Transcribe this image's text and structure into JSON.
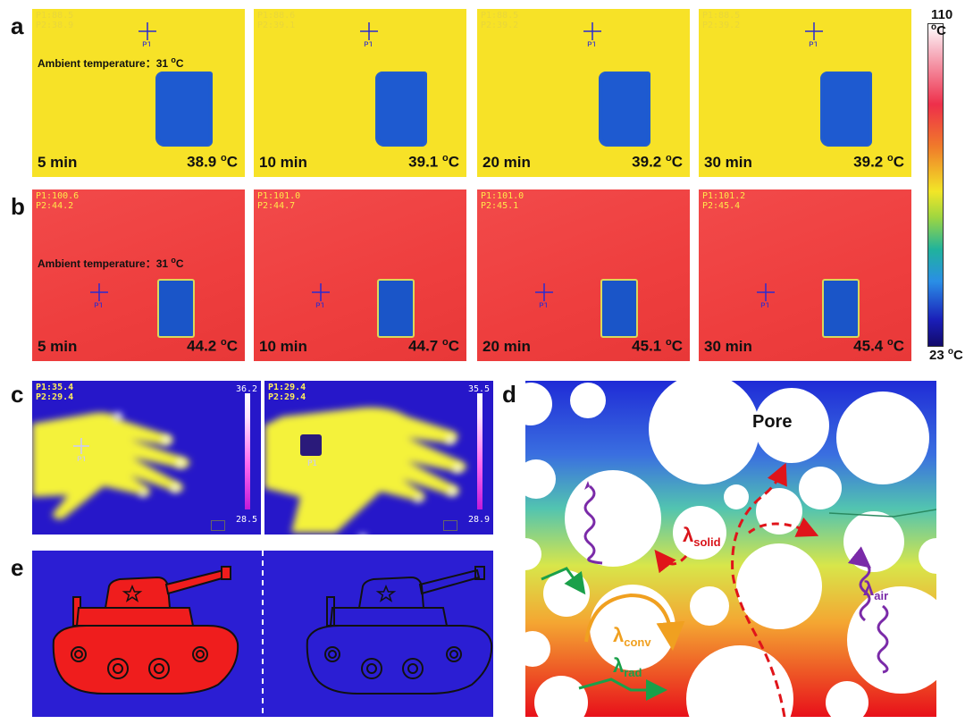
{
  "panels": {
    "a": "a",
    "b": "b",
    "c": "c",
    "d": "d",
    "e": "e"
  },
  "ambient": {
    "text": "Ambient temperature：31 ",
    "unit": "o",
    "unitC": "C"
  },
  "row_a": [
    {
      "time": "5 min",
      "temp": "38.9 ",
      "readout": "P1:88.5\nP2:38.9"
    },
    {
      "time": "10 min",
      "temp": "39.1 ",
      "readout": "P1:88.6\nP2:39.1"
    },
    {
      "time": "20 min",
      "temp": "39.2 ",
      "readout": "P1:88.5\nP2:39.2"
    },
    {
      "time": "30 min",
      "temp": "39.2 ",
      "readout": "P1:88.5\nP2:39.2"
    }
  ],
  "row_b": [
    {
      "time": "5 min",
      "temp": "44.2 ",
      "readout": "P1:100.6\nP2:44.2"
    },
    {
      "time": "10 min",
      "temp": "44.7 ",
      "readout": "P1:101.0\nP2:44.7"
    },
    {
      "time": "20 min",
      "temp": "45.1 ",
      "readout": "P1:101.0\nP2:45.1"
    },
    {
      "time": "30 min",
      "temp": "45.4 ",
      "readout": "P1:101.2\nP2:45.4"
    }
  ],
  "unit_o": "o",
  "unit_c": "C",
  "p1": "P1",
  "p2": "P2",
  "colorbar": {
    "max": "110 ",
    "min": "23 ",
    "unit_o": "o",
    "unit_c": "C"
  },
  "hands": [
    {
      "readout": "P1:35.4\nP2:29.4",
      "max": "36.2",
      "min": "28.5"
    },
    {
      "readout": "P1:29.4\nP2:29.4",
      "max": "35.5",
      "min": "28.9"
    }
  ],
  "diagram": {
    "pore": "Pore",
    "lambda": "λ",
    "solid": "solid",
    "air": "air",
    "conv": "conv",
    "rad": "rad"
  },
  "colors": {
    "thermal_yellow": "#f7e227",
    "thermal_red": "#ee3e3e",
    "tank_red": "#ef1d1d",
    "tank_bg": "#2b1ed3"
  }
}
